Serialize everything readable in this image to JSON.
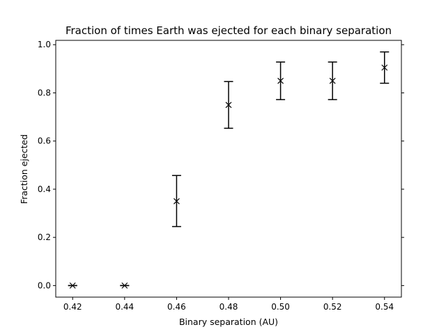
{
  "chart_data": {
    "type": "scatter",
    "title": "Fraction of times Earth was ejected for each binary separation",
    "xlabel": "Binary separation (AU)",
    "ylabel": "Fraction ejected",
    "xlim": [
      0.4135,
      0.5465
    ],
    "ylim": [
      -0.048,
      1.018
    ],
    "x_ticks": [
      "0.42",
      "0.44",
      "0.46",
      "0.48",
      "0.50",
      "0.52",
      "0.54"
    ],
    "y_ticks": [
      "0.0",
      "0.2",
      "0.4",
      "0.6",
      "0.8",
      "1.0"
    ],
    "marker": "x",
    "color": "#000000",
    "grid": false,
    "points": [
      {
        "x": 0.42,
        "y": 0.0,
        "err_low": 0.0,
        "err_high": 0.0
      },
      {
        "x": 0.44,
        "y": 0.0,
        "err_low": 0.0,
        "err_high": 0.0
      },
      {
        "x": 0.46,
        "y": 0.35,
        "err_low": 0.245,
        "err_high": 0.457
      },
      {
        "x": 0.48,
        "y": 0.75,
        "err_low": 0.653,
        "err_high": 0.847
      },
      {
        "x": 0.5,
        "y": 0.85,
        "err_low": 0.772,
        "err_high": 0.928
      },
      {
        "x": 0.52,
        "y": 0.85,
        "err_low": 0.772,
        "err_high": 0.928
      },
      {
        "x": 0.54,
        "y": 0.905,
        "err_low": 0.84,
        "err_high": 0.97
      }
    ]
  }
}
